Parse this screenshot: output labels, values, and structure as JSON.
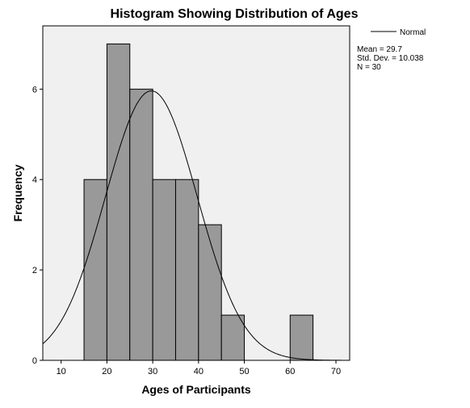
{
  "chart_data": {
    "type": "bar",
    "subtype": "histogram",
    "title": "Histogram Showing Distribution of Ages",
    "xlabel": "Ages of Participants",
    "ylabel": "Frequency",
    "xlim": [
      6,
      73
    ],
    "ylim": [
      0,
      7.4
    ],
    "x_ticks": [
      10,
      20,
      30,
      40,
      50,
      60,
      70
    ],
    "y_ticks": [
      0,
      2,
      4,
      6
    ],
    "bins": [
      {
        "start": 15,
        "end": 20,
        "count": 4
      },
      {
        "start": 20,
        "end": 25,
        "count": 7
      },
      {
        "start": 25,
        "end": 30,
        "count": 6
      },
      {
        "start": 30,
        "end": 35,
        "count": 4
      },
      {
        "start": 35,
        "end": 40,
        "count": 4
      },
      {
        "start": 40,
        "end": 45,
        "count": 3
      },
      {
        "start": 45,
        "end": 50,
        "count": 1
      },
      {
        "start": 50,
        "end": 55,
        "count": 0
      },
      {
        "start": 55,
        "end": 60,
        "count": 0
      },
      {
        "start": 60,
        "end": 65,
        "count": 1
      }
    ],
    "normal_curve": {
      "mean": 29.7,
      "std": 10.038,
      "n": 30,
      "bin_width": 5
    },
    "legend": {
      "entries": [
        "Normal"
      ],
      "placement": "top-right"
    },
    "stats": {
      "mean_label": "Mean = 29.7",
      "std_label": "Std. Dev. = 10.038",
      "n_label": "N = 30"
    },
    "grid": false,
    "colors": {
      "bar_fill": "#999999",
      "bar_stroke": "#000000",
      "plot_background": "#f0f0f0",
      "curve": "#000000"
    }
  }
}
